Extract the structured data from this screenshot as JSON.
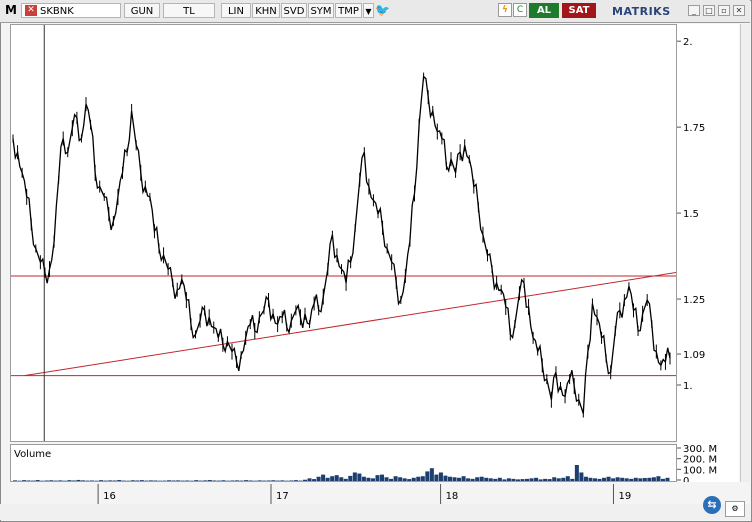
{
  "toolbar": {
    "logo": "M",
    "symbol": "SKBNK",
    "period": "GUN",
    "currency": "TL",
    "scale": "LIN",
    "buttons": [
      "KHN",
      "SVD",
      "SYM",
      "TMP"
    ],
    "buy_label": "AL",
    "sell_label": "SAT",
    "brand": "MATRIKS"
  },
  "chart_data": [
    {
      "type": "line",
      "ticks": [
        "2.",
        "1.75",
        "1.5",
        "1.25",
        "1.09",
        "1."
      ],
      "ylim": [
        0.84,
        2.05
      ],
      "x_tick_labels": [
        "16",
        "17",
        "18",
        "19"
      ],
      "series": [
        {
          "values": [
            1.72,
            1.68,
            1.62,
            1.55,
            1.47,
            1.4,
            1.36,
            1.33,
            1.34,
            1.42,
            1.6,
            1.72,
            1.68,
            1.75,
            1.78,
            1.72,
            1.82,
            1.76,
            1.62,
            1.58,
            1.55,
            1.5,
            1.48,
            1.55,
            1.62,
            1.68,
            1.8,
            1.7,
            1.62,
            1.58,
            1.55,
            1.45,
            1.4,
            1.38,
            1.34,
            1.3,
            1.28,
            1.31,
            1.25,
            1.18,
            1.15,
            1.19,
            1.22,
            1.2,
            1.17,
            1.14,
            1.12,
            1.13,
            1.1,
            1.07,
            1.09,
            1.14,
            1.18,
            1.16,
            1.2,
            1.22,
            1.25,
            1.21,
            1.18,
            1.2,
            1.17,
            1.19,
            1.22,
            1.2,
            1.21,
            1.18,
            1.24,
            1.22,
            1.26,
            1.34,
            1.44,
            1.38,
            1.34,
            1.3,
            1.36,
            1.46,
            1.6,
            1.68,
            1.58,
            1.54,
            1.5,
            1.46,
            1.4,
            1.36,
            1.3,
            1.25,
            1.32,
            1.42,
            1.56,
            1.76,
            1.9,
            1.84,
            1.8,
            1.74,
            1.72,
            1.64,
            1.66,
            1.62,
            1.68,
            1.7,
            1.66,
            1.58,
            1.52,
            1.44,
            1.38,
            1.34,
            1.3,
            1.28,
            1.23,
            1.15,
            1.18,
            1.27,
            1.3,
            1.23,
            1.14,
            1.1,
            1.06,
            1.02,
            0.96,
            1.04,
            1.0,
            0.97,
            1.02,
            1.0,
            0.96,
            0.92,
            1.1,
            1.24,
            1.2,
            1.14,
            1.08,
            1.04,
            1.16,
            1.22,
            1.25,
            1.29,
            1.22,
            1.16,
            1.21,
            1.25,
            1.18,
            1.1,
            1.06,
            1.07,
            1.08
          ],
          "color": "#000000"
        }
      ],
      "hlines": [
        1.32,
        1.03
      ],
      "trendline": [
        [
          0.02,
          1.03
        ],
        [
          1.0,
          1.33
        ]
      ],
      "cursor_x": 0.05,
      "grid": false
    },
    {
      "type": "bar",
      "title": "Volume",
      "ticks": [
        "300. M",
        "200. M",
        "100. M",
        "0."
      ],
      "ylim": [
        0,
        300
      ],
      "values": [
        6,
        3,
        8,
        5,
        4,
        9,
        3,
        5,
        7,
        4,
        6,
        3,
        8,
        5,
        10,
        6,
        4,
        5,
        3,
        8,
        4,
        6,
        5,
        9,
        4,
        3,
        7,
        5,
        8,
        4,
        6,
        5,
        3,
        4,
        7,
        5,
        6,
        4,
        5,
        3,
        8,
        4,
        6,
        9,
        5,
        4,
        7,
        3,
        5,
        6,
        4,
        8,
        5,
        3,
        6,
        4,
        5,
        7,
        4,
        6,
        3,
        5,
        8,
        4,
        12,
        25,
        18,
        40,
        60,
        30,
        45,
        55,
        35,
        20,
        48,
        80,
        70,
        40,
        30,
        25,
        55,
        60,
        35,
        20,
        45,
        35,
        25,
        18,
        30,
        40,
        45,
        90,
        120,
        60,
        80,
        50,
        40,
        35,
        30,
        45,
        25,
        20,
        35,
        40,
        30,
        25,
        20,
        30,
        15,
        25,
        20,
        15,
        18,
        20,
        25,
        30,
        15,
        20,
        18,
        35,
        25,
        30,
        45,
        20,
        150,
        80,
        40,
        30,
        25,
        20,
        30,
        40,
        25,
        35,
        30,
        25,
        20,
        30,
        25,
        28,
        30,
        35,
        45,
        20,
        30
      ],
      "color": "#1c3f70",
      "grid": false
    }
  ]
}
